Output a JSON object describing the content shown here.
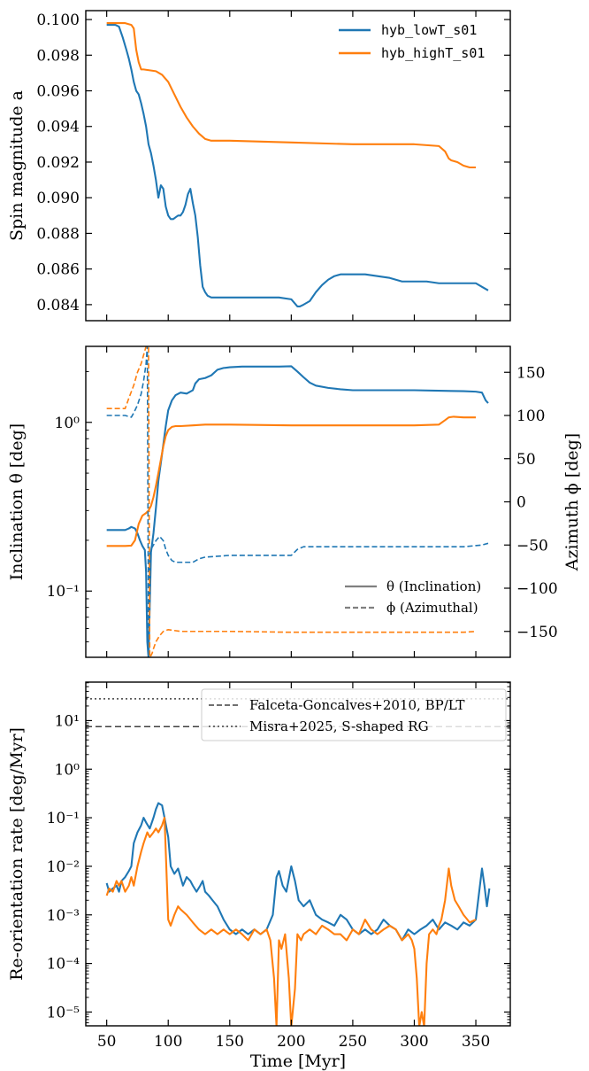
{
  "colors": {
    "lowT": "#1f77b4",
    "highT": "#ff7f0e",
    "ref_dashed": "#404040",
    "ref_dotted": "#404040",
    "legend_gray": "#808080"
  },
  "chart_data": [
    {
      "type": "line",
      "xlim": [
        33,
        378
      ],
      "ylim": [
        0.0831,
        0.1005
      ],
      "ylabel": "Spin magnitude a",
      "yticks": [
        0.084,
        0.086,
        0.088,
        0.09,
        0.092,
        0.094,
        0.096,
        0.098,
        0.1
      ],
      "ytick_labels": [
        "0.084",
        "0.086",
        "0.088",
        "0.090",
        "0.092",
        "0.094",
        "0.096",
        "0.098",
        "0.100"
      ],
      "legend": {
        "placement": "top-right",
        "entries": [
          "hyb_lowT_s01",
          "hyb_highT_s01"
        ]
      },
      "series": [
        {
          "name": "hyb_lowT_s01",
          "color": "#1f77b4",
          "x": [
            50,
            57,
            60,
            63,
            66,
            68,
            70,
            72,
            74,
            76,
            78,
            80,
            82,
            84,
            86,
            88,
            90,
            92,
            94,
            96,
            98,
            100,
            102,
            104,
            106,
            108,
            110,
            112,
            114,
            116,
            118,
            120,
            122,
            124,
            126,
            128,
            130,
            132,
            135,
            140,
            150,
            160,
            170,
            180,
            190,
            200,
            205,
            207,
            210,
            215,
            220,
            225,
            230,
            235,
            240,
            245,
            250,
            260,
            270,
            280,
            290,
            300,
            310,
            320,
            330,
            340,
            350,
            355,
            360
          ],
          "y": [
            0.0997,
            0.0997,
            0.0996,
            0.099,
            0.0983,
            0.0978,
            0.0972,
            0.0965,
            0.096,
            0.0958,
            0.0953,
            0.0947,
            0.094,
            0.093,
            0.0925,
            0.0918,
            0.091,
            0.09,
            0.0907,
            0.0905,
            0.0895,
            0.089,
            0.0888,
            0.0888,
            0.0889,
            0.089,
            0.089,
            0.0892,
            0.0896,
            0.0902,
            0.0905,
            0.0897,
            0.089,
            0.0878,
            0.0862,
            0.085,
            0.0847,
            0.0845,
            0.0844,
            0.0844,
            0.0844,
            0.0844,
            0.0844,
            0.0844,
            0.0844,
            0.0843,
            0.0839,
            0.0839,
            0.084,
            0.0842,
            0.0847,
            0.0851,
            0.0854,
            0.0856,
            0.0857,
            0.0857,
            0.0857,
            0.0857,
            0.0856,
            0.0855,
            0.0853,
            0.0853,
            0.0853,
            0.0852,
            0.0852,
            0.0852,
            0.0852,
            0.085,
            0.0848
          ]
        },
        {
          "name": "hyb_highT_s01",
          "color": "#ff7f0e",
          "x": [
            50,
            60,
            65,
            70,
            72,
            74,
            76,
            78,
            80,
            90,
            95,
            100,
            105,
            110,
            115,
            120,
            125,
            130,
            135,
            140,
            150,
            200,
            250,
            300,
            320,
            325,
            328,
            330,
            335,
            340,
            345,
            350
          ],
          "y": [
            0.0998,
            0.0998,
            0.0998,
            0.0997,
            0.0995,
            0.0983,
            0.0976,
            0.0972,
            0.0972,
            0.0971,
            0.0969,
            0.0965,
            0.0958,
            0.0951,
            0.0945,
            0.094,
            0.0936,
            0.0933,
            0.0932,
            0.0932,
            0.0932,
            0.0931,
            0.093,
            0.093,
            0.0929,
            0.0926,
            0.0922,
            0.0921,
            0.092,
            0.0918,
            0.0917,
            0.0917
          ]
        }
      ]
    },
    {
      "type": "line",
      "xlim": [
        33,
        378
      ],
      "ylabel": "Inclination θ [deg]",
      "ylabel_right": "Azimuth ϕ [deg]",
      "y_scale": "log",
      "ylim": [
        0.0405,
        2.82
      ],
      "yticks": [
        0.1,
        1.0
      ],
      "ytick_labels": [
        "10⁻¹",
        "10⁰"
      ],
      "ylim_right": [
        -180,
        180
      ],
      "yticks_right": [
        -150,
        -100,
        -50,
        0,
        50,
        100,
        150
      ],
      "ytick_labels_right": [
        "−150",
        "−100",
        "−50",
        "0",
        "50",
        "100",
        "150"
      ],
      "legend": {
        "placement": "bottom-right",
        "entries": [
          "θ (Inclination)",
          "ϕ (Azimuthal)"
        ]
      },
      "series": [
        {
          "name": "hyb_lowT_s01 θ",
          "color": "#1f77b4",
          "dash": "solid",
          "axis": "left",
          "x": [
            50,
            60,
            65,
            68,
            70,
            73,
            75,
            77,
            79,
            81,
            82,
            83,
            84,
            86,
            88,
            90,
            92,
            95,
            98,
            100,
            103,
            106,
            110,
            115,
            120,
            122,
            125,
            130,
            135,
            140,
            145,
            150,
            160,
            170,
            180,
            190,
            200,
            205,
            210,
            215,
            220,
            230,
            240,
            250,
            260,
            280,
            300,
            320,
            340,
            350,
            355,
            358,
            360
          ],
          "y": [
            0.23,
            0.23,
            0.23,
            0.235,
            0.24,
            0.235,
            0.22,
            0.2,
            0.185,
            0.175,
            0.13,
            0.05,
            0.04,
            0.17,
            0.22,
            0.31,
            0.45,
            0.65,
            0.95,
            1.18,
            1.35,
            1.45,
            1.5,
            1.48,
            1.55,
            1.7,
            1.8,
            1.83,
            1.9,
            2.05,
            2.1,
            2.12,
            2.14,
            2.14,
            2.14,
            2.14,
            2.15,
            2.0,
            1.85,
            1.72,
            1.65,
            1.6,
            1.57,
            1.55,
            1.55,
            1.55,
            1.55,
            1.54,
            1.53,
            1.52,
            1.5,
            1.35,
            1.3
          ]
        },
        {
          "name": "hyb_highT_s01 θ",
          "color": "#ff7f0e",
          "dash": "solid",
          "axis": "left",
          "x": [
            50,
            65,
            70,
            73,
            76,
            79,
            82,
            84,
            86,
            88,
            90,
            92,
            94,
            96,
            98,
            100,
            103,
            106,
            110,
            120,
            130,
            150,
            200,
            250,
            300,
            320,
            325,
            328,
            332,
            340,
            350
          ],
          "y": [
            0.185,
            0.185,
            0.186,
            0.2,
            0.25,
            0.28,
            0.29,
            0.3,
            0.32,
            0.36,
            0.42,
            0.5,
            0.6,
            0.72,
            0.83,
            0.9,
            0.94,
            0.95,
            0.95,
            0.96,
            0.97,
            0.97,
            0.96,
            0.96,
            0.96,
            0.97,
            1.03,
            1.07,
            1.08,
            1.07,
            1.07
          ]
        },
        {
          "name": "hyb_lowT_s01 ϕ",
          "color": "#1f77b4",
          "dash": "dashed",
          "axis": "right",
          "x": [
            50,
            65,
            70,
            72,
            75,
            78,
            80,
            82,
            83,
            84,
            85,
            86,
            88,
            90,
            93,
            96,
            98,
            100,
            103,
            106,
            110,
            115,
            120,
            125,
            130,
            140,
            150,
            160,
            170,
            180,
            195,
            200,
            205,
            210,
            220,
            240,
            260,
            300,
            340,
            355,
            360
          ],
          "y": [
            100,
            100,
            98,
            103,
            112,
            125,
            140,
            160,
            180,
            -180,
            -60,
            -55,
            -50,
            -45,
            -40,
            -45,
            -55,
            -62,
            -68,
            -70,
            -70,
            -70,
            -70,
            -66,
            -64,
            -63,
            -62,
            -62,
            -62,
            -62,
            -62,
            -62,
            -55,
            -52,
            -52,
            -52,
            -52,
            -52,
            -52,
            -50,
            -48
          ]
        },
        {
          "name": "hyb_highT_s01 ϕ",
          "color": "#ff7f0e",
          "dash": "dashed",
          "axis": "right",
          "x": [
            50,
            65,
            68,
            72,
            75,
            78,
            80,
            82,
            84,
            85,
            86,
            87,
            88,
            90,
            93,
            96,
            100,
            110,
            150,
            200,
            250,
            300,
            340,
            350
          ],
          "y": [
            108,
            108,
            120,
            135,
            150,
            160,
            170,
            180,
            180,
            -180,
            -178,
            -175,
            -170,
            -162,
            -155,
            -150,
            -148,
            -150,
            -150,
            -151,
            -151,
            -151,
            -151,
            -150
          ]
        }
      ]
    },
    {
      "type": "line",
      "xlim": [
        33,
        378
      ],
      "xlabel": "Time [Myr]",
      "xticks": [
        50,
        100,
        150,
        200,
        250,
        300,
        350
      ],
      "xtick_labels": [
        "50",
        "100",
        "150",
        "200",
        "250",
        "300",
        "350"
      ],
      "ylabel": "Re-orientation rate [deg/Myr]",
      "y_scale": "log",
      "ylim": [
        5.2e-06,
        62
      ],
      "yticks": [
        1e-05,
        0.0001,
        0.001,
        0.01,
        0.1,
        1,
        10
      ],
      "ytick_labels": [
        "10⁻⁵",
        "10⁻⁴",
        "10⁻³",
        "10⁻²",
        "10⁻¹",
        "10⁰",
        "10¹"
      ],
      "legend": {
        "placement": "top-right",
        "entries": [
          "Falceta-Goncalves+2010, BP/LT",
          "Misra+2025, S-shaped RG"
        ]
      },
      "reference_lines": [
        {
          "name": "Falceta-Goncalves+2010, BP/LT",
          "y": 7.5,
          "style": "dashed",
          "color": "#404040"
        },
        {
          "name": "Misra+2025, S-shaped RG",
          "y": 28,
          "style": "dotted",
          "color": "#404040"
        }
      ],
      "series": [
        {
          "name": "hyb_lowT_s01",
          "color": "#1f77b4",
          "x": [
            50,
            52,
            55,
            58,
            60,
            62,
            65,
            68,
            70,
            72,
            75,
            78,
            80,
            82,
            85,
            88,
            90,
            92,
            95,
            97,
            100,
            102,
            105,
            108,
            110,
            112,
            115,
            118,
            120,
            123,
            126,
            128,
            130,
            133,
            136,
            140,
            145,
            150,
            155,
            160,
            165,
            170,
            175,
            180,
            185,
            188,
            190,
            193,
            196,
            200,
            203,
            206,
            210,
            215,
            220,
            225,
            230,
            235,
            240,
            245,
            250,
            255,
            260,
            265,
            270,
            275,
            280,
            285,
            290,
            295,
            300,
            305,
            310,
            315,
            320,
            325,
            330,
            335,
            340,
            345,
            350,
            355,
            357,
            359,
            361
          ],
          "y": [
            0.0045,
            0.003,
            0.0035,
            0.004,
            0.003,
            0.005,
            0.006,
            0.008,
            0.01,
            0.03,
            0.05,
            0.07,
            0.1,
            0.08,
            0.06,
            0.1,
            0.15,
            0.2,
            0.18,
            0.1,
            0.04,
            0.01,
            0.007,
            0.009,
            0.006,
            0.004,
            0.006,
            0.005,
            0.004,
            0.003,
            0.004,
            0.005,
            0.003,
            0.0025,
            0.002,
            0.0015,
            0.0008,
            0.0005,
            0.0004,
            0.0005,
            0.0004,
            0.0005,
            0.0004,
            0.0005,
            0.001,
            0.006,
            0.008,
            0.004,
            0.003,
            0.01,
            0.005,
            0.002,
            0.0015,
            0.002,
            0.001,
            0.0008,
            0.0007,
            0.0006,
            0.001,
            0.0008,
            0.0005,
            0.0004,
            0.0005,
            0.0004,
            0.0005,
            0.0008,
            0.0006,
            0.0005,
            0.0003,
            0.0005,
            0.0004,
            0.0005,
            0.0006,
            0.0008,
            0.0005,
            0.0007,
            0.0006,
            0.0005,
            0.0007,
            0.0006,
            0.0008,
            0.009,
            0.004,
            0.0015,
            0.0035
          ]
        },
        {
          "name": "hyb_highT_s01",
          "color": "#ff7f0e",
          "x": [
            50,
            52,
            55,
            58,
            60,
            62,
            65,
            68,
            70,
            72,
            75,
            78,
            80,
            83,
            85,
            88,
            90,
            92,
            95,
            97,
            100,
            102,
            105,
            108,
            110,
            115,
            120,
            125,
            130,
            135,
            140,
            145,
            150,
            155,
            160,
            165,
            170,
            175,
            180,
            183,
            186,
            188,
            190,
            192,
            195,
            198,
            200,
            203,
            205,
            208,
            210,
            215,
            220,
            225,
            230,
            235,
            240,
            245,
            250,
            255,
            260,
            265,
            270,
            275,
            280,
            285,
            290,
            295,
            298,
            300,
            302,
            304,
            306,
            308,
            310,
            312,
            315,
            318,
            320,
            322,
            325,
            328,
            330,
            333,
            336,
            340,
            345,
            350
          ],
          "y": [
            0.0025,
            0.0035,
            0.003,
            0.005,
            0.004,
            0.005,
            0.003,
            0.004,
            0.006,
            0.004,
            0.01,
            0.02,
            0.03,
            0.05,
            0.04,
            0.05,
            0.06,
            0.05,
            0.07,
            0.1,
            0.0008,
            0.0006,
            0.001,
            0.0015,
            0.0013,
            0.001,
            0.0007,
            0.0005,
            0.0004,
            0.0005,
            0.0004,
            0.0005,
            0.0004,
            0.0005,
            0.0004,
            0.0003,
            0.0005,
            0.0004,
            0.0005,
            0.0003,
            5e-05,
            5e-06,
            0.0003,
            0.0002,
            0.0004,
            5e-05,
            5e-06,
            3e-05,
            0.0004,
            0.0003,
            0.0004,
            0.0005,
            0.0004,
            0.0006,
            0.0005,
            0.0004,
            0.0004,
            0.0003,
            0.0005,
            0.0004,
            0.0008,
            0.0005,
            0.0004,
            0.0005,
            0.0006,
            0.0005,
            0.0003,
            0.0004,
            0.0003,
            0.0002,
            5e-05,
            5e-06,
            1e-05,
            5e-06,
            0.0001,
            0.0004,
            0.0005,
            0.0004,
            0.0006,
            0.0008,
            0.002,
            0.009,
            0.004,
            0.002,
            0.0015,
            0.001,
            0.0007,
            0.0008
          ]
        }
      ]
    }
  ]
}
